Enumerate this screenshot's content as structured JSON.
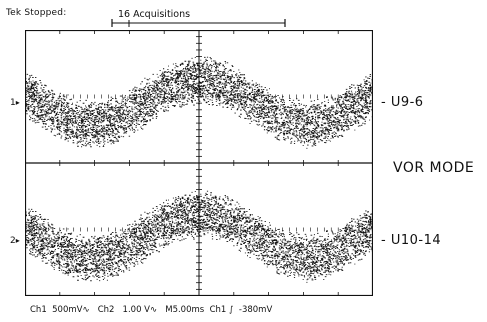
{
  "header": {
    "status": "Tek Stopped:",
    "acquisitions": "16 Acquisitions"
  },
  "channels": [
    {
      "marker": "1",
      "trace_label": "U9-6"
    },
    {
      "marker": "2",
      "trace_label": "U10-14"
    }
  ],
  "mode_label": "VOR MODE",
  "readout": {
    "ch1_name": "Ch1",
    "ch1_scale": "500mV",
    "ch1_coupling": "∿",
    "ch2_name": "Ch2",
    "ch2_scale": "1.00 V",
    "ch2_coupling": "∿",
    "timebase": "M5.00ms",
    "trigger_source": "Ch1",
    "trigger_slope": "∫",
    "trigger_level": "-380mV"
  },
  "colors": {
    "background": "#ffffff",
    "trace": "#111111",
    "graticule": "#111111"
  }
}
